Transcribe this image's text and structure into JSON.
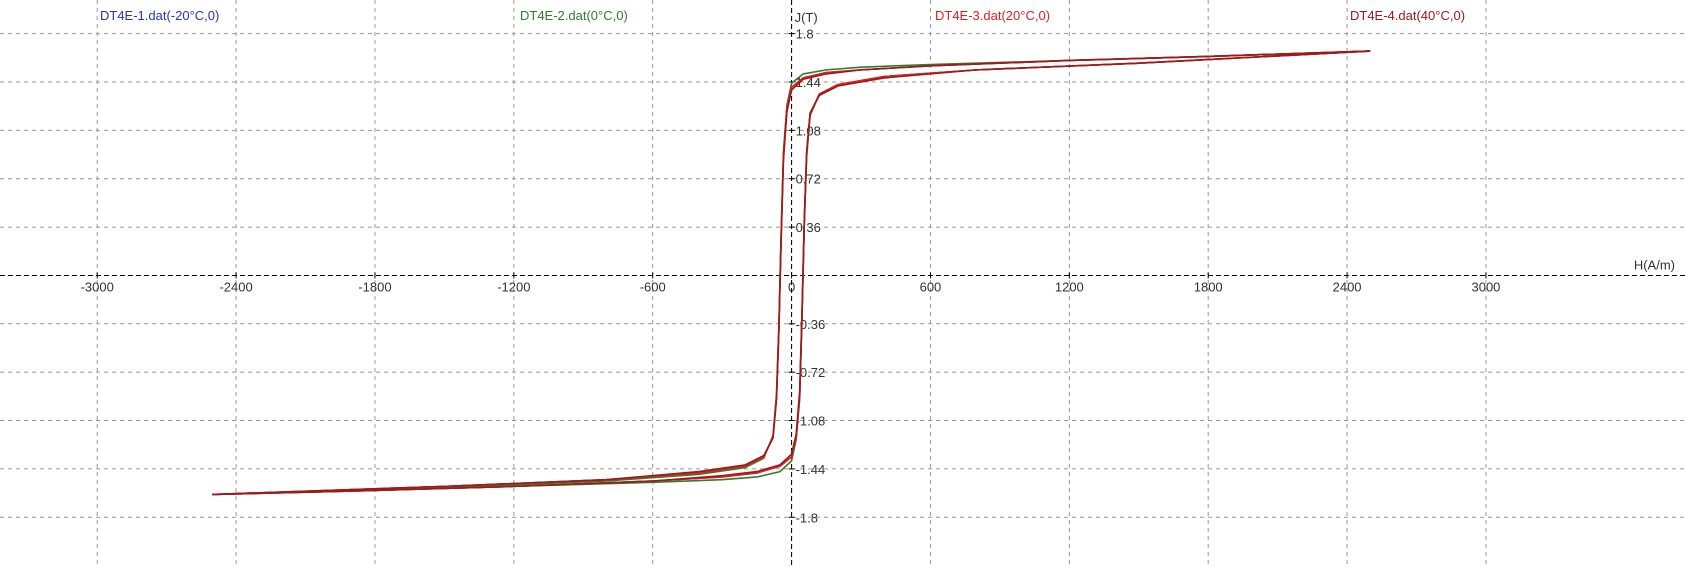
{
  "chart_data": {
    "type": "line",
    "xlabel": "H(A/m)",
    "ylabel": "J(T)",
    "x": [
      2500,
      1800,
      1200,
      600,
      300,
      150,
      50,
      0,
      -20,
      -35,
      -45,
      -55,
      -65,
      -80,
      -120,
      -200,
      -400,
      -800,
      -1500,
      -2500,
      -1800,
      -1200,
      -600,
      -300,
      -150,
      -50,
      0,
      20,
      35,
      45,
      55,
      65,
      80,
      120,
      200,
      400,
      800,
      1500,
      2500
    ],
    "series": [
      {
        "name": "DT4E-1.dat(-20°C,0)",
        "color": "#2233cc",
        "values": [
          1.67,
          1.63,
          1.6,
          1.56,
          1.53,
          1.51,
          1.47,
          1.4,
          1.25,
          0.9,
          0.3,
          -0.4,
          -0.9,
          -1.2,
          -1.35,
          -1.42,
          -1.47,
          -1.52,
          -1.57,
          -1.63,
          -1.6,
          -1.57,
          -1.53,
          -1.5,
          -1.47,
          -1.42,
          -1.35,
          -1.2,
          -0.9,
          -0.3,
          0.4,
          0.9,
          1.2,
          1.35,
          1.42,
          1.48,
          1.53,
          1.58,
          1.67
        ]
      },
      {
        "name": "DT4E-2.dat(0°C,0)",
        "color": "#2e7d2e",
        "values": [
          1.67,
          1.63,
          1.6,
          1.57,
          1.55,
          1.53,
          1.5,
          1.43,
          1.27,
          0.92,
          0.32,
          -0.38,
          -0.88,
          -1.19,
          -1.36,
          -1.43,
          -1.48,
          -1.53,
          -1.58,
          -1.63,
          -1.6,
          -1.57,
          -1.54,
          -1.52,
          -1.5,
          -1.46,
          -1.38,
          -1.22,
          -0.92,
          -0.32,
          0.38,
          0.88,
          1.19,
          1.35,
          1.42,
          1.48,
          1.53,
          1.58,
          1.67
        ]
      },
      {
        "name": "DT4E-3.dat(20°C,0)",
        "color": "#dd2222",
        "values": [
          1.67,
          1.63,
          1.6,
          1.56,
          1.53,
          1.51,
          1.47,
          1.4,
          1.25,
          0.9,
          0.3,
          -0.4,
          -0.9,
          -1.2,
          -1.35,
          -1.42,
          -1.47,
          -1.52,
          -1.57,
          -1.63,
          -1.6,
          -1.57,
          -1.53,
          -1.5,
          -1.47,
          -1.42,
          -1.35,
          -1.2,
          -0.9,
          -0.3,
          0.4,
          0.9,
          1.2,
          1.35,
          1.42,
          1.48,
          1.53,
          1.58,
          1.67
        ]
      },
      {
        "name": "DT4E-4.dat(40°C,0)",
        "color": "#a01818",
        "values": [
          1.67,
          1.63,
          1.6,
          1.56,
          1.53,
          1.5,
          1.46,
          1.38,
          1.22,
          0.86,
          0.26,
          -0.42,
          -0.92,
          -1.21,
          -1.34,
          -1.41,
          -1.46,
          -1.52,
          -1.57,
          -1.63,
          -1.6,
          -1.57,
          -1.53,
          -1.49,
          -1.46,
          -1.41,
          -1.33,
          -1.18,
          -0.86,
          -0.26,
          0.42,
          0.92,
          1.21,
          1.34,
          1.41,
          1.47,
          1.53,
          1.58,
          1.67
        ]
      }
    ],
    "xlim": [
      -3420,
      3860
    ],
    "ylim": [
      -2.17,
      2.05
    ],
    "xticks": [
      -3000,
      -2400,
      -1800,
      -1200,
      -600,
      0,
      600,
      1200,
      1800,
      2400,
      3000
    ],
    "yticks": [
      1.8,
      1.44,
      1.08,
      0.72,
      0.36,
      -0.36,
      -0.72,
      -1.08,
      -1.44,
      -1.8
    ],
    "grid": true
  }
}
